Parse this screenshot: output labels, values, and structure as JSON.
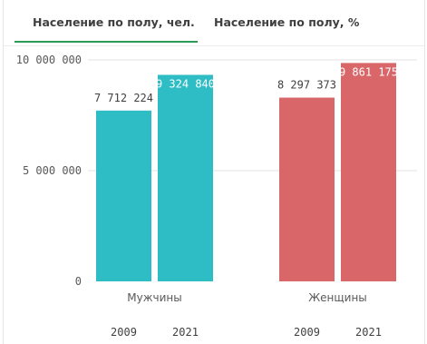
{
  "tabs": [
    {
      "label": "Население по полу, чел.",
      "active": true
    },
    {
      "label": "Население по полу, %",
      "active": false
    }
  ],
  "colors": {
    "men": "#2ebdc4",
    "women": "#d9676a",
    "gridline": "#e3e3e3",
    "tab_underline": "#2e9a57"
  },
  "chart_data": {
    "type": "bar",
    "title": "",
    "xlabel": "",
    "ylabel": "",
    "ylim": [
      0,
      10000000
    ],
    "y_ticks": [
      {
        "value": 0,
        "label": "0"
      },
      {
        "value": 5000000,
        "label": "5 000 000"
      },
      {
        "value": 10000000,
        "label": "10 000 000"
      }
    ],
    "categories": [
      "Мужчины",
      "Женщины"
    ],
    "years": [
      "2009",
      "2021"
    ],
    "values": [
      [
        {
          "value": 7712224,
          "label": "7 712 224"
        },
        {
          "value": 9324840,
          "label": "9 324 840"
        }
      ],
      [
        {
          "value": 8297373,
          "label": "8 297 373"
        },
        {
          "value": 9861175,
          "label": "9 861 175"
        }
      ]
    ]
  }
}
